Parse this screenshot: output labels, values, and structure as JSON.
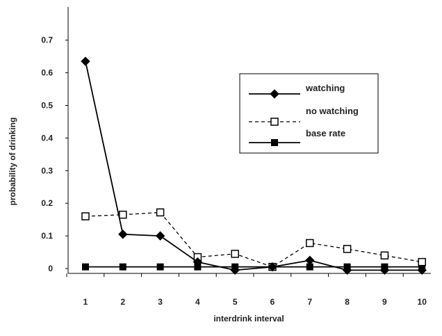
{
  "chart_data": {
    "type": "line",
    "title": "",
    "xlabel": "interdrink interval",
    "ylabel": "probability of drinking",
    "x": [
      1,
      2,
      3,
      4,
      5,
      6,
      7,
      8,
      9,
      10
    ],
    "x_tick_labels": [
      "1",
      "2",
      "3",
      "4",
      "5",
      "6",
      "7",
      "8",
      "9",
      "10"
    ],
    "y_tick_labels": [
      "0",
      "0.1",
      "0.2",
      "0.3",
      "0.4",
      "0.5",
      "0.6",
      "0.7"
    ],
    "y_ticks": [
      0,
      0.1,
      0.2,
      0.3,
      0.4,
      0.5,
      0.6,
      0.7
    ],
    "ylim": [
      -0.02,
      0.8
    ],
    "xlim": [
      0.5,
      10.5
    ],
    "grid": false,
    "legend_position": "upper-right inside plot",
    "series": [
      {
        "name": "watching",
        "values": [
          0.635,
          0.105,
          0.1,
          0.02,
          -0.005,
          0.005,
          0.025,
          -0.005,
          -0.005,
          -0.005
        ],
        "marker": "filled-diamond",
        "line_style": "solid",
        "color": "#000000"
      },
      {
        "name": "no watching",
        "values": [
          0.16,
          0.165,
          0.172,
          0.035,
          0.045,
          0.005,
          0.078,
          0.06,
          0.04,
          0.02
        ],
        "marker": "open-square",
        "line_style": "dashed",
        "color": "#000000"
      },
      {
        "name": "base rate",
        "values": [
          0.005,
          0.005,
          0.005,
          0.005,
          0.005,
          0.005,
          0.005,
          0.005,
          0.005,
          0.005
        ],
        "marker": "filled-square",
        "line_style": "solid",
        "color": "#000000"
      }
    ]
  }
}
